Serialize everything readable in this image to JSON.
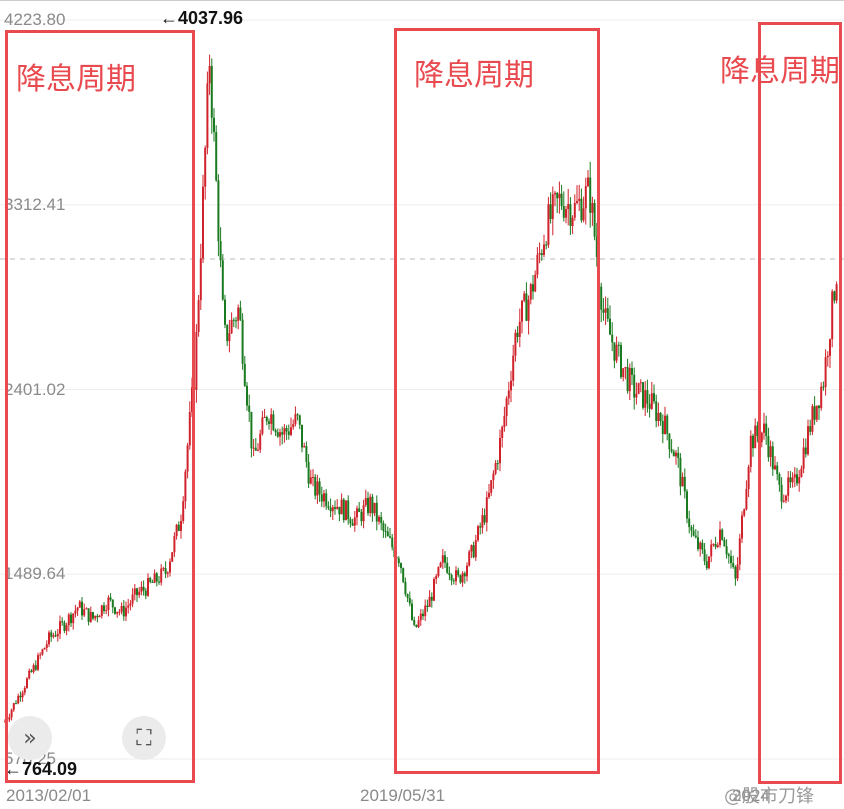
{
  "chart_data": {
    "type": "candlestick-line",
    "y_ticks": [
      "4223.80",
      "3312.41",
      "2401.02",
      "1489.64",
      "578.25"
    ],
    "y_tick_values": [
      4223.8,
      3312.41,
      2401.02,
      1489.64,
      578.25
    ],
    "ylim": [
      578.25,
      4223.8
    ],
    "x_ticks": [
      "2013/02/01",
      "2019/05/31",
      "2024"
    ],
    "annotations": {
      "max_label": "←4037.96",
      "max_value": 4037.96,
      "min_label": "←764.09",
      "min_value": 764.09
    },
    "reference_line_value": 3045,
    "period_label": "降息周期",
    "periods": [
      {
        "label": "降息周期",
        "start_idx": 0,
        "end_idx": 14.2
      },
      {
        "label": "降息周期",
        "start_idx": 30.0,
        "end_idx": 46.0
      },
      {
        "label": "降息周期",
        "start_idx": 58.5,
        "end_idx": 65
      }
    ],
    "series": [
      {
        "values": [
          764,
          900,
          1030,
          1170,
          1240,
          1330,
          1270,
          1360,
          1300,
          1390,
          1440,
          1500,
          1760,
          2500,
          4037,
          2650,
          2800,
          2050,
          2300,
          2180,
          2250,
          1920,
          1870,
          1820,
          1760,
          1840,
          1680,
          1570,
          1210,
          1350,
          1560,
          1460,
          1600,
          1830,
          2180,
          2700,
          2880,
          3200,
          3340,
          3290,
          3380,
          2750,
          2550,
          2400,
          2350,
          2250,
          2050,
          1680,
          1550,
          1720,
          1450,
          2150,
          2200,
          1900,
          1920,
          2200,
          2450,
          3040
        ]
      }
    ]
  },
  "watermark": "@股市刀锋"
}
